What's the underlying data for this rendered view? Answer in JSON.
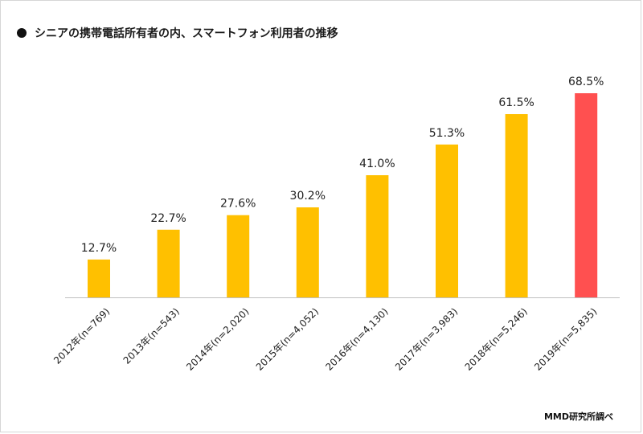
{
  "title": "シニアの携帯電話所有者の内、スマートフォン利用者の推移",
  "source": "MMD研究所調べ",
  "colors": {
    "bar": "#FFC000",
    "highlight": "#FF5050",
    "axis": "#BFBFBF",
    "text": "#222222"
  },
  "chart_data": {
    "type": "bar",
    "title": "シニアの携帯電話所有者の内、スマートフォン利用者の推移",
    "categories": [
      "2012年(n=769)",
      "2013年(n=543)",
      "2014年(n=2,020)",
      "2015年(n=4,052)",
      "2016年(n=4,130)",
      "2017年(n=3,983)",
      "2018年(n=5,246)",
      "2019年(n=5,835)"
    ],
    "values": [
      12.7,
      22.7,
      27.6,
      30.2,
      41.0,
      51.3,
      61.5,
      68.5
    ],
    "data_labels": [
      "12.7%",
      "22.7%",
      "27.6%",
      "30.2%",
      "41.0%",
      "51.3%",
      "61.5%",
      "68.5%"
    ],
    "highlight_index": 7,
    "ylim": [
      0,
      68.5
    ],
    "grid": false,
    "legend": "none"
  }
}
